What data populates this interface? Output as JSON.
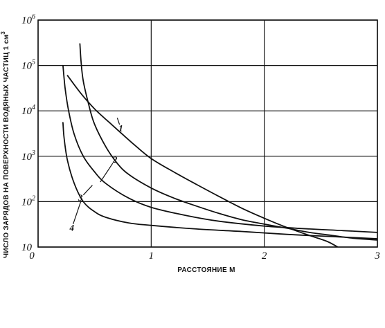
{
  "chart_data": {
    "type": "line",
    "x_axis": {
      "label": "РАССТОЯНИЕ  М",
      "range": [
        0,
        3
      ],
      "ticks": [
        {
          "value": 0,
          "label": "0"
        },
        {
          "value": 1,
          "label": "1"
        },
        {
          "value": 2,
          "label": "2"
        },
        {
          "value": 3,
          "label": "3"
        }
      ]
    },
    "y_axis": {
      "label": "ЧИСЛО ЗАРЯДОВ НА ПОВЕРХНОСТИ ВОДЯНЫХ ЧАСТИЦ 1 см",
      "label_exponent": "3",
      "scale": "log",
      "range": [
        10,
        1000000
      ],
      "ticks": [
        {
          "value": 10,
          "base": "10",
          "exp": ""
        },
        {
          "value": 100,
          "base": "10",
          "exp": "2"
        },
        {
          "value": 1000,
          "base": "10",
          "exp": "3"
        },
        {
          "value": 10000,
          "base": "10",
          "exp": "4"
        },
        {
          "value": 100000,
          "base": "10",
          "exp": "5"
        },
        {
          "value": 1000000,
          "base": "10",
          "exp": "6"
        }
      ]
    },
    "grid": true,
    "series": [
      {
        "name": "1",
        "points": [
          [
            0.26,
            60000
          ],
          [
            0.38,
            24000
          ],
          [
            0.5,
            11000
          ],
          [
            0.65,
            5000
          ],
          [
            0.85,
            1800
          ],
          [
            1.0,
            890
          ],
          [
            1.2,
            450
          ],
          [
            1.4,
            240
          ],
          [
            1.6,
            130
          ],
          [
            1.8,
            72
          ],
          [
            2.0,
            43
          ],
          [
            2.2,
            27
          ],
          [
            2.4,
            18
          ],
          [
            2.55,
            13.5
          ],
          [
            2.65,
            10
          ]
        ]
      },
      {
        "name": "2",
        "points": [
          [
            0.37,
            300000
          ],
          [
            0.38,
            120000
          ],
          [
            0.4,
            45000
          ],
          [
            0.45,
            13000
          ],
          [
            0.5,
            5000
          ],
          [
            0.6,
            1600
          ],
          [
            0.7,
            700
          ],
          [
            0.8,
            400
          ],
          [
            1.0,
            200
          ],
          [
            1.2,
            120
          ],
          [
            1.4,
            80
          ],
          [
            1.6,
            55
          ],
          [
            1.8,
            40
          ],
          [
            2.0,
            32
          ],
          [
            2.2,
            26
          ],
          [
            2.4,
            21
          ],
          [
            2.6,
            18
          ],
          [
            2.8,
            15.5
          ],
          [
            3.05,
            14
          ]
        ]
      },
      {
        "name": "3",
        "points": [
          [
            0.22,
            100000
          ],
          [
            0.24,
            30000
          ],
          [
            0.27,
            10000
          ],
          [
            0.32,
            3000
          ],
          [
            0.4,
            1000
          ],
          [
            0.5,
            450
          ],
          [
            0.6,
            250
          ],
          [
            0.8,
            120
          ],
          [
            1.0,
            75
          ],
          [
            1.3,
            50
          ],
          [
            1.6,
            37
          ],
          [
            2.0,
            29
          ],
          [
            2.4,
            25
          ],
          [
            2.7,
            23
          ],
          [
            3.0,
            21
          ]
        ]
      },
      {
        "name": "4",
        "points": [
          [
            0.22,
            5500
          ],
          [
            0.23,
            2500
          ],
          [
            0.26,
            800
          ],
          [
            0.32,
            250
          ],
          [
            0.4,
            100
          ],
          [
            0.5,
            60
          ],
          [
            0.6,
            45
          ],
          [
            0.8,
            34
          ],
          [
            1.0,
            30
          ],
          [
            1.4,
            25
          ],
          [
            1.8,
            22
          ],
          [
            2.2,
            19
          ],
          [
            2.6,
            17
          ],
          [
            3.05,
            15
          ]
        ]
      }
    ],
    "curve_labels": [
      {
        "text": "1",
        "x": 0.7,
        "y": 7000,
        "tx": 0.72,
        "ty": 5000
      },
      {
        "text": "2",
        "x": 0.55,
        "y": 270,
        "tx": 0.66,
        "ty": 700
      },
      {
        "text": "3",
        "x": 0.48,
        "y": 230,
        "tx": 0.4,
        "ty": 140
      },
      {
        "text": "4",
        "x": 0.38,
        "y": 105,
        "tx": 0.31,
        "ty": 32
      }
    ]
  }
}
